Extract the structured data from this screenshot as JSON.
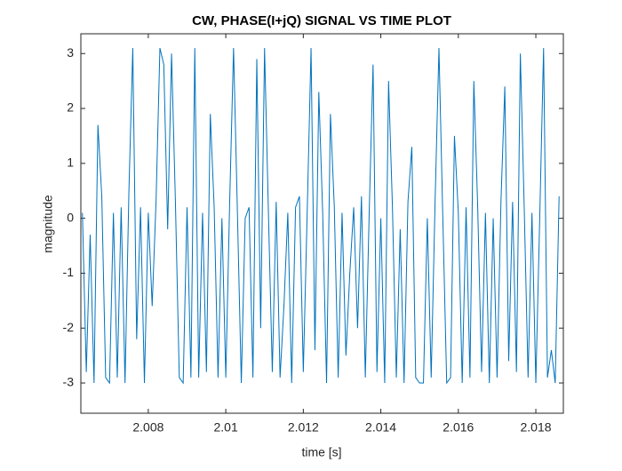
{
  "chart_data": {
    "type": "line",
    "title": "CW, PHASE(I+jQ) SIGNAL VS TIME PLOT",
    "xlabel": "time [s]",
    "ylabel": "magnitude",
    "x": [
      2.0063,
      2.0064,
      2.0065,
      2.0066,
      2.0067,
      2.0068,
      2.0069,
      2.007,
      2.0071,
      2.0072,
      2.0073,
      2.0074,
      2.0075,
      2.0076,
      2.0077,
      2.0078,
      2.0079,
      2.008,
      2.0081,
      2.0082,
      2.0083,
      2.0084,
      2.0085,
      2.0086,
      2.0087,
      2.0088,
      2.0089,
      2.009,
      2.0091,
      2.0092,
      2.0093,
      2.0094,
      2.0095,
      2.0096,
      2.0097,
      2.0098,
      2.0099,
      2.01,
      2.0101,
      2.0102,
      2.0103,
      2.0104,
      2.0105,
      2.0106,
      2.0107,
      2.0108,
      2.0109,
      2.011,
      2.0111,
      2.0112,
      2.0113,
      2.0114,
      2.0115,
      2.0116,
      2.0117,
      2.0118,
      2.0119,
      2.012,
      2.0121,
      2.0122,
      2.0123,
      2.0124,
      2.0125,
      2.0126,
      2.0127,
      2.0128,
      2.0129,
      2.013,
      2.0131,
      2.0132,
      2.0133,
      2.0134,
      2.0135,
      2.0136,
      2.0137,
      2.0138,
      2.0139,
      2.014,
      2.0141,
      2.0142,
      2.0143,
      2.0144,
      2.0145,
      2.0146,
      2.0147,
      2.0148,
      2.0149,
      2.015,
      2.0151,
      2.0152,
      2.0153,
      2.0154,
      2.0155,
      2.0156,
      2.0157,
      2.0158,
      2.0159,
      2.016,
      2.0161,
      2.0162,
      2.0163,
      2.0164,
      2.0165,
      2.0166,
      2.0167,
      2.0168,
      2.0169,
      2.017,
      2.0171,
      2.0172,
      2.0173,
      2.0174,
      2.0175,
      2.0176,
      2.0177,
      2.0178,
      2.0179,
      2.018,
      2.0181,
      2.0182,
      2.0183,
      2.0184,
      2.0185,
      2.0186
    ],
    "series": [
      {
        "color": "#0072bd",
        "values": [
          0.1,
          -2.8,
          -0.3,
          -3.0,
          1.7,
          0.4,
          -2.9,
          -3.0,
          0.1,
          -2.9,
          0.2,
          -3.0,
          0.5,
          3.1,
          -2.2,
          0.2,
          -3.0,
          0.1,
          -1.6,
          0.3,
          3.1,
          2.8,
          -0.2,
          3.0,
          0.3,
          -2.9,
          -3.0,
          0.2,
          -2.9,
          3.1,
          -2.9,
          0.1,
          -2.8,
          1.9,
          0.2,
          -2.9,
          0.0,
          -2.9,
          0.3,
          3.1,
          0.1,
          -3.0,
          0.0,
          0.2,
          -2.9,
          2.9,
          -2.0,
          3.1,
          0.1,
          -2.8,
          0.3,
          -2.9,
          -1.6,
          0.1,
          -3.0,
          0.2,
          0.4,
          -2.8,
          0.1,
          3.1,
          -2.4,
          2.3,
          0.1,
          -3.0,
          1.9,
          0.2,
          -2.9,
          0.1,
          -2.5,
          -1.0,
          0.2,
          -2.0,
          0.4,
          -2.9,
          0.1,
          2.8,
          -2.8,
          0.0,
          -3.0,
          2.5,
          0.2,
          -2.9,
          -0.2,
          -3.0,
          0.3,
          1.3,
          -2.9,
          -3.0,
          -3.0,
          0.0,
          -2.9,
          0.3,
          3.1,
          0.0,
          -3.0,
          -2.9,
          1.5,
          0.1,
          -3.0,
          0.2,
          -2.9,
          2.5,
          0.2,
          -2.8,
          0.1,
          -3.0,
          0.0,
          -2.9,
          0.3,
          2.4,
          -2.6,
          0.3,
          -2.8,
          3.0,
          0.2,
          -2.9,
          0.1,
          -3.0,
          0.0,
          3.1,
          -2.9,
          -2.4,
          -3.0,
          0.4
        ]
      }
    ],
    "xlim": [
      2.00626,
      2.01871
    ],
    "xticks": [
      2.008,
      2.01,
      2.012,
      2.014,
      2.016,
      2.018
    ],
    "ylim": [
      -3.55,
      3.36
    ],
    "yticks": [
      -3,
      -2,
      -1,
      0,
      1,
      2,
      3
    ]
  }
}
